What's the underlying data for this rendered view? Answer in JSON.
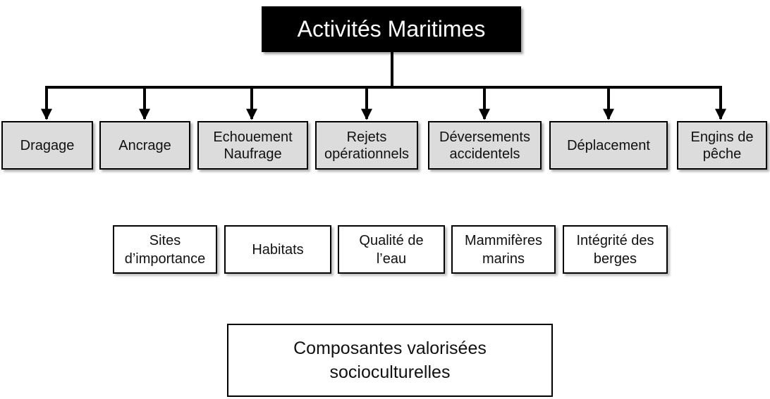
{
  "root": {
    "label": "Activités Maritimes"
  },
  "activities": [
    {
      "label": [
        "Dragage"
      ]
    },
    {
      "label": [
        "Ancrage"
      ]
    },
    {
      "label": [
        "Echouement",
        "Naufrage"
      ]
    },
    {
      "label": [
        "Rejets",
        "opérationnels"
      ]
    },
    {
      "label": [
        "Déversements",
        "accidentels"
      ]
    },
    {
      "label": [
        "Déplacement"
      ]
    },
    {
      "label": [
        "Engins de",
        "pêche"
      ]
    }
  ],
  "components": [
    {
      "label": [
        "Sites",
        "d’importance"
      ]
    },
    {
      "label": [
        "Habitats"
      ]
    },
    {
      "label": [
        "Qualité de",
        "l’eau"
      ]
    },
    {
      "label": [
        "Mammifères",
        "marins"
      ]
    },
    {
      "label": [
        "Intégrité des",
        "berges"
      ]
    }
  ],
  "bottom": {
    "label": [
      "Composantes valorisées",
      "socioculturelles"
    ]
  },
  "colors": {
    "root_bg": "#000000",
    "activity_bg": "#dcdcdc",
    "line": "#000000"
  }
}
